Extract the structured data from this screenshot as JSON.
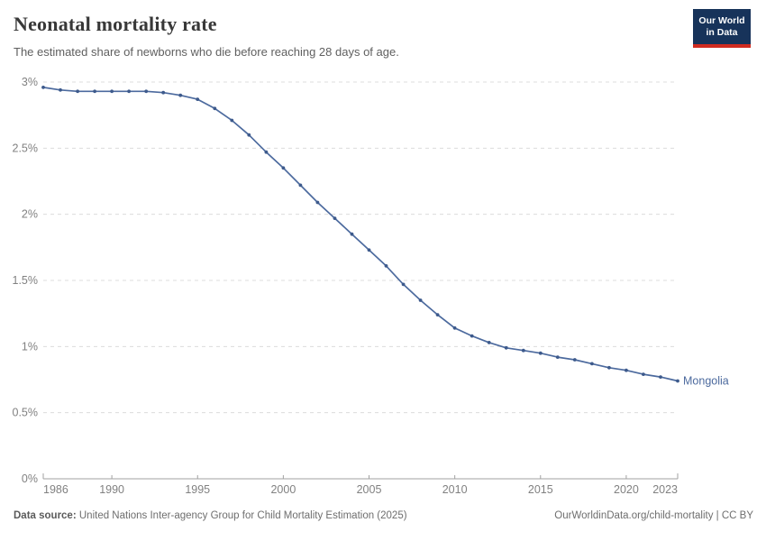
{
  "header": {
    "title": "Neonatal mortality rate",
    "subtitle": "The estimated share of newborns who die before reaching 28 days of age.",
    "logo": {
      "line1": "Our World",
      "line2": "in Data"
    }
  },
  "chart_data": {
    "type": "line",
    "title": "Neonatal mortality rate",
    "xlabel": "",
    "ylabel": "",
    "xlim": [
      1986,
      2023
    ],
    "ylim": [
      0,
      3
    ],
    "grid": "horizontal dashed",
    "legend_position": "end-of-line label",
    "x_ticks": [
      1986,
      1990,
      1995,
      2000,
      2005,
      2010,
      2015,
      2020,
      2023
    ],
    "y_ticks": [
      0,
      0.5,
      1,
      1.5,
      2,
      2.5,
      3
    ],
    "y_tick_labels": [
      "0%",
      "0.5%",
      "1%",
      "1.5%",
      "2%",
      "2.5%",
      "3%"
    ],
    "end_label": "Mongolia",
    "series": [
      {
        "name": "Mongolia",
        "color": "#4c6a9e",
        "marker_color": "#3d5a8c",
        "x": [
          1986,
          1987,
          1988,
          1989,
          1990,
          1991,
          1992,
          1993,
          1994,
          1995,
          1996,
          1997,
          1998,
          1999,
          2000,
          2001,
          2002,
          2003,
          2004,
          2005,
          2006,
          2007,
          2008,
          2009,
          2010,
          2011,
          2012,
          2013,
          2014,
          2015,
          2016,
          2017,
          2018,
          2019,
          2020,
          2021,
          2022,
          2023
        ],
        "values": [
          2.96,
          2.94,
          2.93,
          2.93,
          2.93,
          2.93,
          2.93,
          2.92,
          2.9,
          2.87,
          2.8,
          2.71,
          2.6,
          2.47,
          2.35,
          2.22,
          2.09,
          1.97,
          1.85,
          1.73,
          1.61,
          1.47,
          1.35,
          1.24,
          1.14,
          1.08,
          1.03,
          0.99,
          0.97,
          0.95,
          0.92,
          0.9,
          0.87,
          0.84,
          0.82,
          0.79,
          0.77,
          0.74
        ]
      }
    ]
  },
  "footer": {
    "source_label": "Data source:",
    "source_text": " United Nations Inter-agency Group for Child Mortality Estimation (2025)",
    "link_text": "OurWorldinData.org/child-mortality | CC BY"
  },
  "colors": {
    "grid": "#dcdcdc",
    "axis": "#a1a1a1",
    "tick_text": "#818181",
    "title_text": "#383838",
    "subtitle_text": "#5f5f5f",
    "logo_bg": "#17335a",
    "logo_bar": "#d02b20",
    "series_blue": "#4c6a9e"
  }
}
